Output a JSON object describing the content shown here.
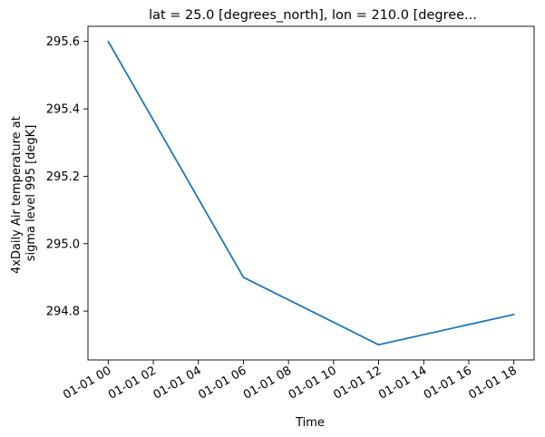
{
  "chart_data": {
    "type": "line",
    "title": "lat = 25.0 [degrees_north], lon = 210.0 [degree...",
    "xlabel": "Time",
    "ylabel_lines": [
      "4xDaily Air temperature at",
      "sigma level 995 [degK]"
    ],
    "x_hours": [
      0,
      6,
      12,
      18
    ],
    "y": [
      295.6,
      294.9,
      294.7,
      294.79
    ],
    "xlim_hours": [
      -0.9,
      18.9
    ],
    "ylim": [
      294.655,
      295.645
    ],
    "x_ticks": [
      {
        "hour": 0,
        "label": "01-01 00"
      },
      {
        "hour": 2,
        "label": "01-01 02"
      },
      {
        "hour": 4,
        "label": "01-01 04"
      },
      {
        "hour": 6,
        "label": "01-01 06"
      },
      {
        "hour": 8,
        "label": "01-01 08"
      },
      {
        "hour": 10,
        "label": "01-01 10"
      },
      {
        "hour": 12,
        "label": "01-01 12"
      },
      {
        "hour": 14,
        "label": "01-01 14"
      },
      {
        "hour": 16,
        "label": "01-01 16"
      },
      {
        "hour": 18,
        "label": "01-01 18"
      }
    ],
    "y_ticks": [
      {
        "value": 294.8,
        "label": "294.8"
      },
      {
        "value": 295.0,
        "label": "295.0"
      },
      {
        "value": 295.2,
        "label": "295.2"
      },
      {
        "value": 295.4,
        "label": "295.4"
      },
      {
        "value": 295.6,
        "label": "295.6"
      }
    ],
    "grid": false,
    "line_color": "#1f77b4"
  }
}
